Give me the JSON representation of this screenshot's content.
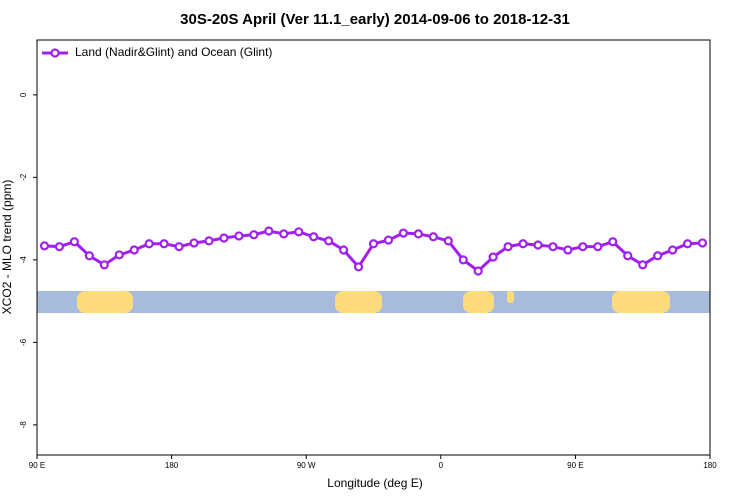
{
  "chart_data": {
    "type": "line",
    "title": "30S-20S April (Ver 11.1_early)   2014-09-06 to 2018-12-31",
    "x_label": "Longitude (deg E)",
    "y_label": "XCO2 - MLO trend (ppm)",
    "xlim": [
      90,
      540
    ],
    "ylim": [
      -8.73,
      1.33
    ],
    "xticks": [
      {
        "value": 90,
        "label": "90 E"
      },
      {
        "value": 180,
        "label": "180"
      },
      {
        "value": 270,
        "label": "90 W"
      },
      {
        "value": 360,
        "label": "0"
      },
      {
        "value": 450,
        "label": "90 E"
      },
      {
        "value": 540,
        "label": "180"
      }
    ],
    "yticks": [
      -8,
      -6,
      -4,
      -2,
      0
    ],
    "legend": "top-left",
    "x": [
      95,
      105,
      115,
      125,
      135,
      145,
      155,
      165,
      175,
      185,
      195,
      205,
      215,
      225,
      235,
      245,
      255,
      265,
      275,
      285,
      295,
      305,
      315,
      325,
      335,
      345,
      355,
      365,
      375,
      385,
      395,
      405,
      415,
      425,
      435,
      445,
      455,
      465,
      475,
      485,
      495,
      505,
      515,
      525,
      535
    ],
    "series": [
      {
        "name": "Land (Nadir&Glint) and Ocean (Glint)",
        "color": "#a020f0",
        "values": [
          -3.66,
          -3.68,
          -3.56,
          -3.9,
          -4.12,
          -3.88,
          -3.76,
          -3.61,
          -3.61,
          -3.68,
          -3.59,
          -3.54,
          -3.47,
          -3.42,
          -3.39,
          -3.3,
          -3.37,
          -3.32,
          -3.44,
          -3.54,
          -3.76,
          -4.17,
          -3.61,
          -3.52,
          -3.35,
          -3.37,
          -3.44,
          -3.54,
          -4.0,
          -4.27,
          -3.93,
          -3.68,
          -3.61,
          -3.64,
          -3.68,
          -3.76,
          -3.68,
          -3.68,
          -3.56,
          -3.9,
          -4.12,
          -3.9,
          -3.76,
          -3.61,
          -3.59
        ]
      }
    ]
  }
}
